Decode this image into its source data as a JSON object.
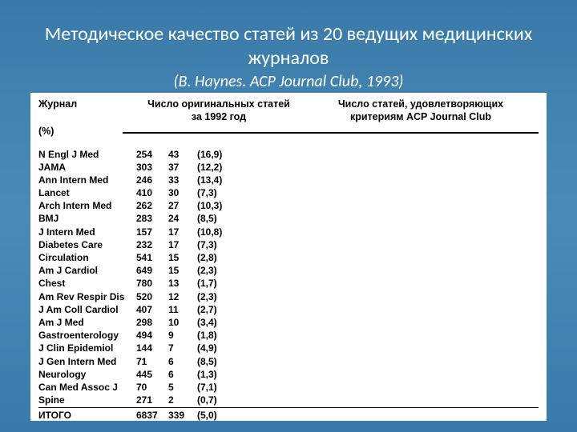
{
  "title": {
    "main": "Методическое качество статей из 20 ведущих медицинских журналов",
    "sub": "(B. Haynes. ACP Journal Club, 1993)"
  },
  "headers": {
    "col1": "Журнал",
    "col2_l1": "Число оригинальных статей",
    "col2_l2": "за 1992 год",
    "col3_l1": "Число статей, удовлетворяющих",
    "col3_l2": "критериям ACP Journal Club",
    "pct": "(%)"
  },
  "rows": [
    {
      "j": "N Engl J Med",
      "v1": "254",
      "v2": "43",
      "v3": "(16,9)"
    },
    {
      "j": "JAMA",
      "v1": "303",
      "v2": "37",
      "v3": "(12,2)"
    },
    {
      "j": "Ann Intern Med",
      "v1": "246",
      "v2": "33",
      "v3": "(13,4)"
    },
    {
      "j": "Lancet",
      "v1": "410",
      "v2": "30",
      "v3": "(7,3)"
    },
    {
      "j": "Arch Intern Med",
      "v1": "262",
      "v2": "27",
      "v3": "(10,3)"
    },
    {
      "j": "BMJ",
      "v1": "283",
      "v2": "24",
      "v3": "(8,5)"
    },
    {
      "j": "J Intern Med",
      "v1": "157",
      "v2": "17",
      "v3": "(10,8)"
    },
    {
      "j": "Diabetes Care",
      "v1": "232",
      "v2": "17",
      "v3": "(7,3)"
    },
    {
      "j": "Circulation",
      "v1": "541",
      "v2": "15",
      "v3": "(2,8)"
    },
    {
      "j": "Am J Cardiol",
      "v1": "649",
      "v2": "15",
      "v3": "(2,3)"
    },
    {
      "j": "Chest",
      "v1": "780",
      "v2": "13",
      "v3": "(1,7)"
    },
    {
      "j": "Am Rev Respir Dis",
      "v1": "520",
      "v2": "12",
      "v3": "(2,3)"
    },
    {
      "j": "J Am Coll Cardiol",
      "v1": "407",
      "v2": "11",
      "v3": "(2,7)"
    },
    {
      "j": "Am J Med",
      "v1": "298",
      "v2": "10",
      "v3": "(3,4)"
    },
    {
      "j": "Gastroenterology",
      "v1": "494",
      "v2": "9",
      "v3": "(1,8)"
    },
    {
      "j": "J Clin Epidemiol",
      "v1": "144",
      "v2": "7",
      "v3": "(4,9)"
    },
    {
      "j": "J Gen Intern Med",
      "v1": "71",
      "v2": "6",
      "v3": "(8,5)"
    },
    {
      "j": "Neurology",
      "v1": "445",
      "v2": "6",
      "v3": "(1,3)"
    },
    {
      "j": "Can Med Assoc J",
      "v1": "70",
      "v2": "5",
      "v3": "(7,1)"
    },
    {
      "j": "Spine",
      "v1": "271",
      "v2": "2",
      "v3": "(0,7)"
    }
  ],
  "total": {
    "j": "ИТОГО",
    "v1": "6837",
    "v2": "339",
    "v3": "(5,0)"
  },
  "colors": {
    "header_bg_top": "#3a7aa8",
    "header_bg_mid": "#4b8bb8",
    "header_text": "#ffffff",
    "body_bg": "#ffffff",
    "body_text": "#000000",
    "rule": "#000000"
  }
}
